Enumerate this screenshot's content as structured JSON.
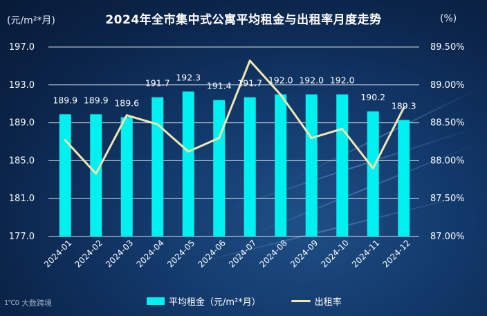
{
  "chart_data": {
    "type": "bar+line",
    "title": "2024年全市集中式公寓平均租金与出租率月度走势",
    "left_axis_unit": "(元/m²*月)",
    "right_axis_unit": "(%)",
    "categories": [
      "2024-01",
      "2024-02",
      "2024-03",
      "2024-04",
      "2024-05",
      "2024-06",
      "2024-07",
      "2024-08",
      "2024-09",
      "2024-10",
      "2024-11",
      "2024-12"
    ],
    "series": [
      {
        "name": "平均租金（元/m²*月）",
        "type": "bar",
        "axis": "left",
        "values": [
          189.9,
          189.9,
          189.6,
          191.7,
          192.3,
          191.4,
          191.7,
          192.0,
          192.0,
          192.0,
          190.2,
          189.3
        ],
        "labels": [
          "189.9",
          "189.9",
          "189.6",
          "191.7",
          "192.3",
          "191.4",
          "191.7",
          "192.0",
          "192.0",
          "192.0",
          "190.2",
          "189.3"
        ]
      },
      {
        "name": "出租率",
        "type": "line",
        "axis": "right",
        "values": [
          88.27,
          87.83,
          88.6,
          88.48,
          88.12,
          88.3,
          89.32,
          88.87,
          88.3,
          88.42,
          87.9,
          88.7
        ]
      }
    ],
    "left_axis": {
      "ylim": [
        177.0,
        197.0
      ],
      "ticks": [
        177.0,
        181.0,
        185.0,
        189.0,
        193.0,
        197.0
      ],
      "tick_labels": [
        "177.0",
        "181.0",
        "185.0",
        "189.0",
        "193.0",
        "197.0"
      ]
    },
    "right_axis": {
      "ylim": [
        87.0,
        89.5
      ],
      "ticks": [
        87.0,
        87.5,
        88.0,
        88.5,
        89.0,
        89.5
      ],
      "tick_labels": [
        "87.00%",
        "87.50%",
        "88.00%",
        "88.50%",
        "89.00%",
        "89.50%"
      ]
    },
    "grid": true,
    "legend_position": "bottom-center",
    "colors": {
      "bar": "#00f0f0",
      "line": "#f1e7b1",
      "grid": "#ffffff"
    }
  },
  "legend": {
    "bar_label": "平均租金（元/m²*月）",
    "line_label": "出租率"
  },
  "watermark": {
    "mark": "1℃0",
    "text": "大数跨境"
  }
}
